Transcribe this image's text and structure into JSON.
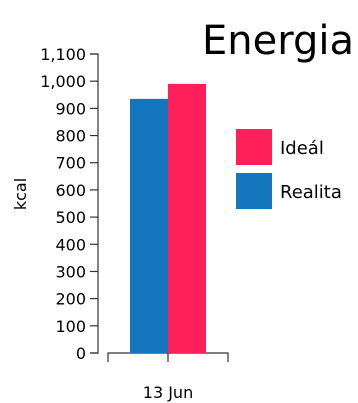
{
  "chart_data": {
    "type": "bar",
    "title": "Energia",
    "ylabel": "kcal",
    "xlabel": "",
    "categories": [
      "13 Jun"
    ],
    "series": [
      {
        "name": "Realita",
        "values": [
          935
        ],
        "color": "#1477be"
      },
      {
        "name": "Ideál",
        "values": [
          990
        ],
        "color": "#fe1f5b"
      }
    ],
    "ylim": [
      0,
      1100
    ],
    "yticks": [
      0,
      100,
      200,
      300,
      400,
      500,
      600,
      700,
      800,
      900,
      1000,
      1100
    ],
    "ytick_labels": [
      "0",
      "100",
      "200",
      "300",
      "400",
      "500",
      "600",
      "700",
      "800",
      "900",
      "1,000",
      "1,100"
    ],
    "grid": false,
    "legend_position": "right",
    "legend_order": [
      "Ideál",
      "Realita"
    ]
  }
}
